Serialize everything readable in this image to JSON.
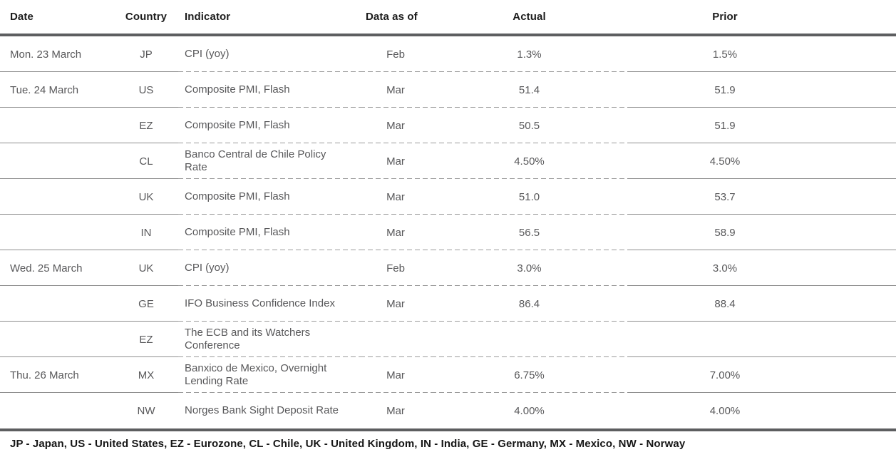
{
  "table": {
    "columns": [
      {
        "label": "Date"
      },
      {
        "label": "Country"
      },
      {
        "label": "Indicator"
      },
      {
        "label": "Data as of"
      },
      {
        "label": "Actual"
      },
      {
        "label": "Prior"
      }
    ],
    "rows": [
      {
        "date": "Mon. 23 March",
        "country": "JP",
        "indicator": "CPI (yoy)",
        "data_as_of": "Feb",
        "actual": "1.3%",
        "prior": "1.5%"
      },
      {
        "date": "Tue. 24 March",
        "country": "US",
        "indicator": "Composite PMI, Flash",
        "data_as_of": "Mar",
        "actual": "51.4",
        "prior": "51.9"
      },
      {
        "date": "",
        "country": "EZ",
        "indicator": "Composite PMI, Flash",
        "data_as_of": "Mar",
        "actual": "50.5",
        "prior": "51.9"
      },
      {
        "date": "",
        "country": "CL",
        "indicator": "Banco Central de Chile Policy Rate",
        "data_as_of": "Mar",
        "actual": "4.50%",
        "prior": "4.50%"
      },
      {
        "date": "",
        "country": "UK",
        "indicator": "Composite PMI, Flash",
        "data_as_of": "Mar",
        "actual": "51.0",
        "prior": "53.7"
      },
      {
        "date": "",
        "country": "IN",
        "indicator": "Composite PMI, Flash",
        "data_as_of": "Mar",
        "actual": "56.5",
        "prior": "58.9"
      },
      {
        "date": "Wed. 25 March",
        "country": "UK",
        "indicator": "CPI (yoy)",
        "data_as_of": "Feb",
        "actual": "3.0%",
        "prior": "3.0%"
      },
      {
        "date": "",
        "country": "GE",
        "indicator": "IFO Business Confidence Index",
        "data_as_of": "Mar",
        "actual": "86.4",
        "prior": "88.4"
      },
      {
        "date": "",
        "country": "EZ",
        "indicator": "The ECB and its Watchers Conference",
        "data_as_of": "",
        "actual": "",
        "prior": ""
      },
      {
        "date": "Thu. 26 March",
        "country": "MX",
        "indicator": "Banxico de Mexico, Overnight Lending Rate",
        "data_as_of": "Mar",
        "actual": "6.75%",
        "prior": "7.00%"
      },
      {
        "date": "",
        "country": "NW",
        "indicator": "Norges Bank Sight Deposit Rate",
        "data_as_of": "Mar",
        "actual": "4.00%",
        "prior": "4.00%"
      }
    ],
    "footnote": "JP - Japan, US - United States, EZ - Eurozone, CL - Chile, UK - United Kingdom, IN - India, GE - Germany, MX - Mexico, NW - Norway"
  },
  "colors": {
    "heavy_rule": "#5d5e60",
    "solid_row_rule": "#8e8e8e",
    "dashed_row_rule": "#9a9a9a",
    "header_text": "#1c1c1c",
    "body_text": "#58585a",
    "footnote_text": "#161616"
  }
}
